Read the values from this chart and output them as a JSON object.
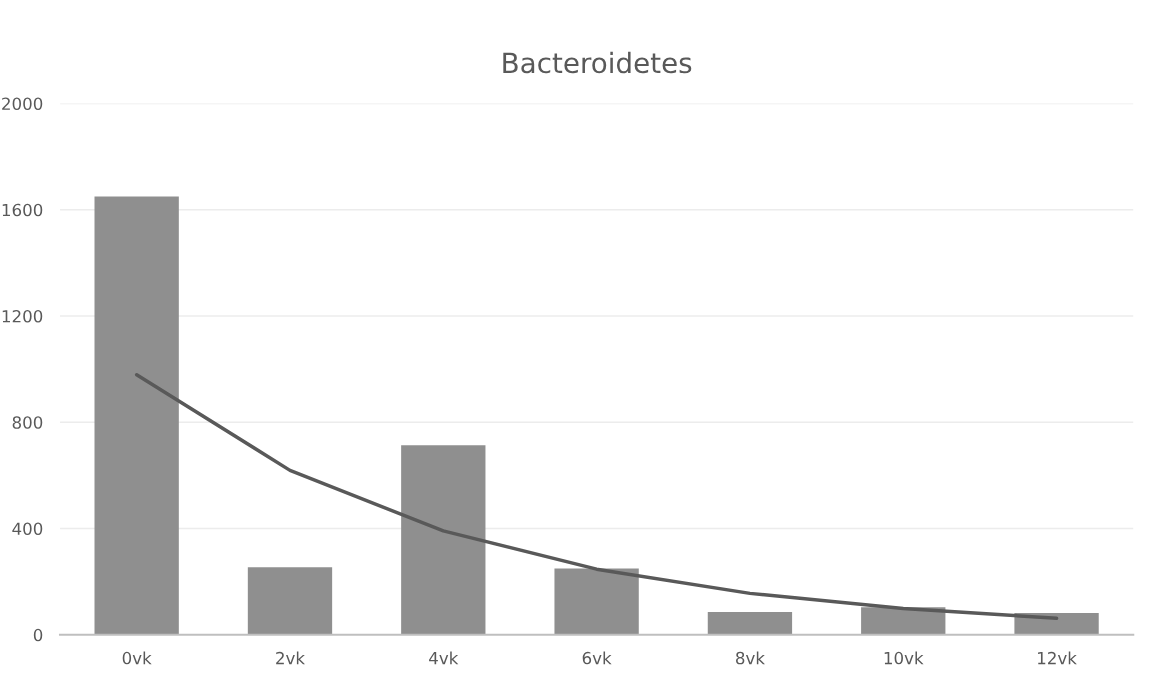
{
  "chart_data": {
    "type": "bar",
    "title": "Bacteroidetes",
    "categories": [
      "0vk",
      "2vk",
      "4vk",
      "6vk",
      "8vk",
      "10vk",
      "12vk"
    ],
    "series": [
      {
        "color": "#8f8f8f",
        "values": [
          1650,
          254,
          714,
          250,
          86,
          104,
          82
        ]
      },
      {
        "type": "line",
        "color": "#595959",
        "values": [
          979,
          619,
          391,
          247,
          156,
          99,
          62
        ]
      }
    ],
    "ylim": [
      0,
      2000
    ],
    "yticks": [
      0,
      400,
      800,
      1200,
      1600,
      2000
    ],
    "grid": "y",
    "legend": false
  }
}
